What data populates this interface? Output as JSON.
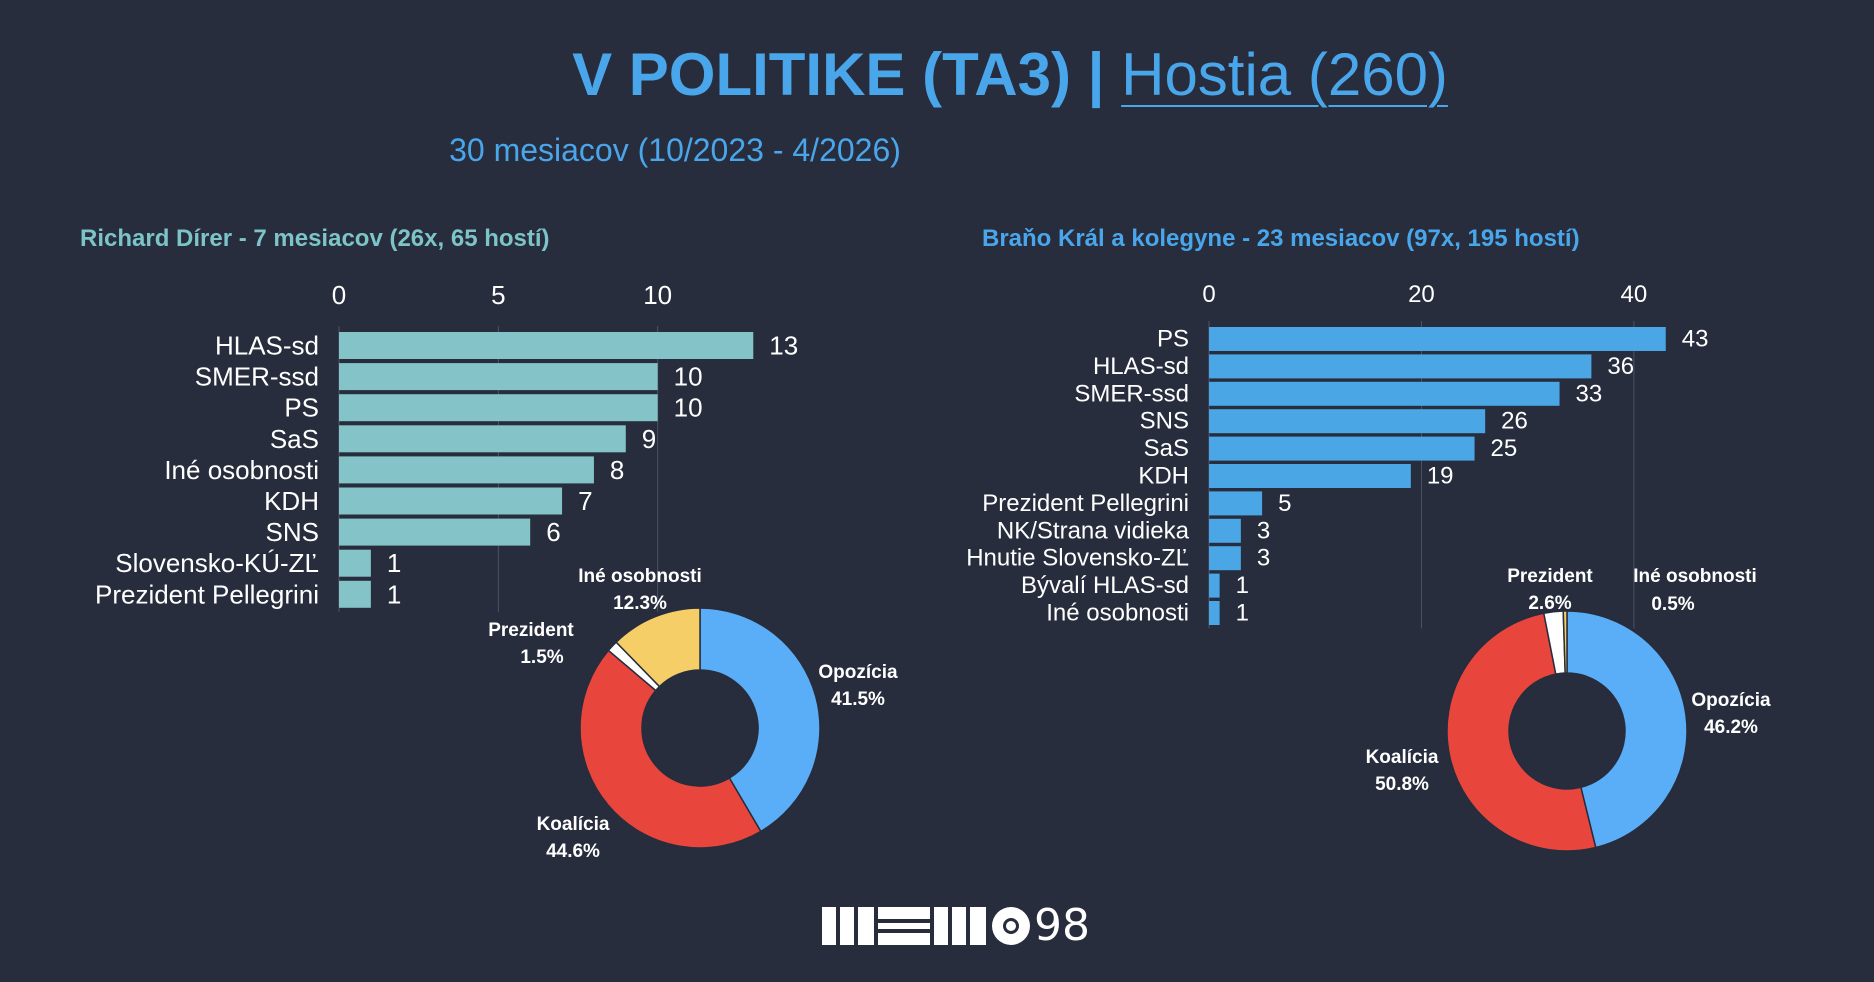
{
  "header": {
    "title_main": "V POLITIKE (TA3) |",
    "title_link": "Hostia (260)",
    "subtitle": "30 mesiacov (10/2023 - 4/2026)"
  },
  "logo": {
    "text": "98"
  },
  "colors": {
    "background": "#272d3c",
    "left_bar": "#84c3c8",
    "right_bar": "#4aa6e5",
    "opozicia": "#5aaef7",
    "koalicia": "#e8463c",
    "prezident": "#ffffff",
    "ine": "#f6ce68"
  },
  "chart_data": [
    {
      "type": "bar",
      "orientation": "horizontal",
      "title": "Richard Dírer - 7 mesiacov (26x, 65 hostí)",
      "categories": [
        "HLAS-sd",
        "SMER-ssd",
        "PS",
        "SaS",
        "Iné osobnosti",
        "KDH",
        "SNS",
        "Slovensko-KÚ-ZĽ",
        "Prezident Pellegrini"
      ],
      "values": [
        13,
        10,
        10,
        9,
        8,
        7,
        6,
        1,
        1
      ],
      "xlim": [
        0,
        15
      ],
      "xticks": [
        0,
        5,
        10
      ],
      "xaxis_position": "top",
      "grid": true
    },
    {
      "type": "pie",
      "donut": true,
      "labels": [
        "Opozícia",
        "Koalícia",
        "Prezident",
        "Iné osobnosti"
      ],
      "values": [
        41.5,
        44.6,
        1.5,
        12.3
      ],
      "value_labels": [
        "41.5%",
        "44.6%",
        "1.5%",
        "12.3%"
      ],
      "colors": [
        "#5aaef7",
        "#e8463c",
        "#ffffff",
        "#f6ce68"
      ]
    },
    {
      "type": "bar",
      "orientation": "horizontal",
      "title": "Braňo Král a kolegyne - 23 mesiacov  (97x, 195 hostí)",
      "categories": [
        "PS",
        "HLAS-sd",
        "SMER-ssd",
        "SNS",
        "SaS",
        "KDH",
        "Prezident Pellegrini",
        "NK/Strana vidieka",
        "Hnutie Slovensko-ZĽ",
        "Bývalí HLAS-sd",
        "Iné osobnosti"
      ],
      "values": [
        43,
        36,
        33,
        26,
        25,
        19,
        5,
        3,
        3,
        1,
        1
      ],
      "xlim": [
        0,
        45
      ],
      "xticks": [
        0,
        20,
        40
      ],
      "xaxis_position": "top",
      "grid": true
    },
    {
      "type": "pie",
      "donut": true,
      "labels": [
        "Opozícia",
        "Koalícia",
        "Prezident",
        "Iné osobnosti"
      ],
      "values": [
        46.2,
        50.8,
        2.6,
        0.5
      ],
      "value_labels": [
        "46.2%",
        "50.8%",
        "2.6%",
        "0.5%"
      ],
      "colors": [
        "#5aaef7",
        "#e8463c",
        "#ffffff",
        "#f6ce68"
      ]
    }
  ]
}
